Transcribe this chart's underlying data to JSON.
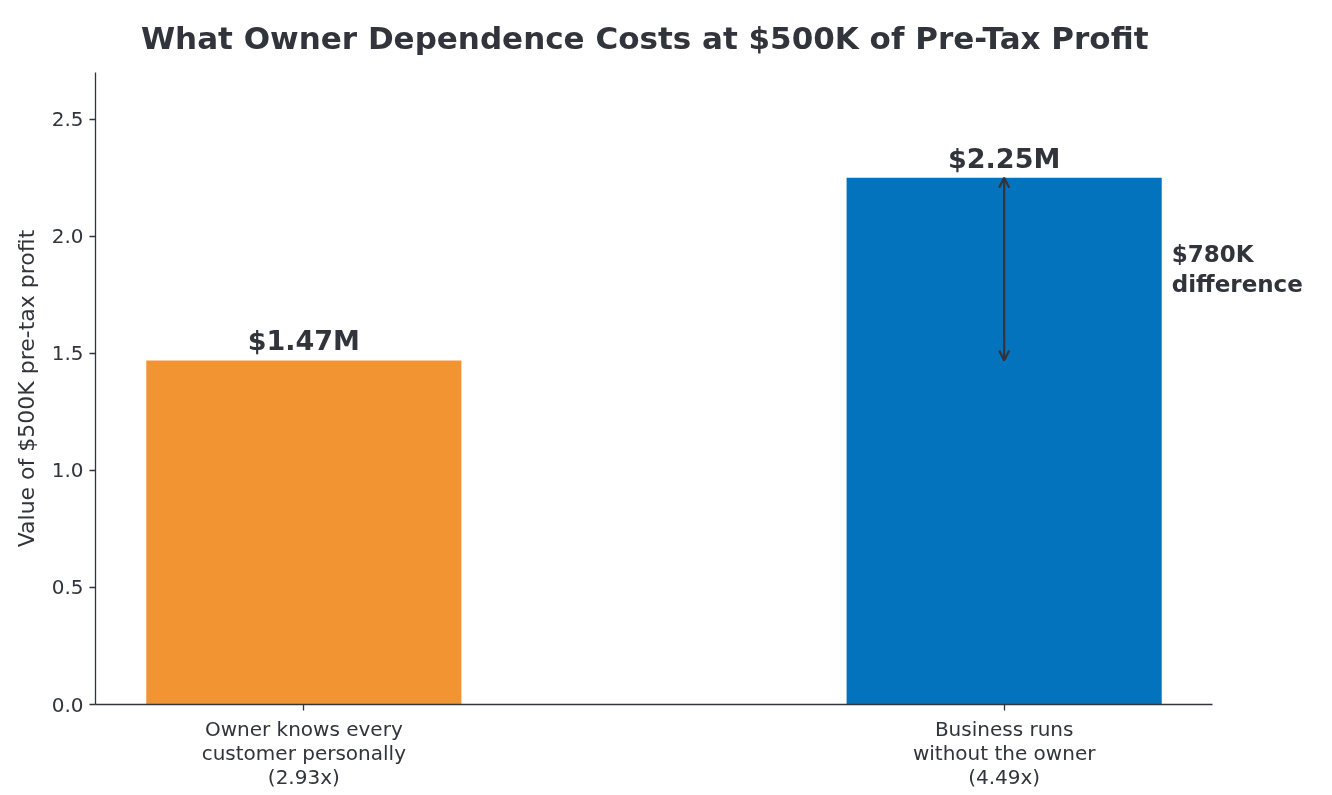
{
  "chart_data": {
    "type": "bar",
    "title": "What Owner Dependence Costs at $500K of Pre-Tax Profit",
    "ylabel": "Value of $500K pre-tax profit",
    "categories": [
      "Owner knows every\ncustomer personally\n(2.93x)",
      "Business runs\nwithout the owner\n(4.49x)"
    ],
    "values": [
      1.47,
      2.25
    ],
    "colors": [
      "#f39433",
      "#0473bd"
    ],
    "value_labels": [
      "$1.47M",
      "$2.25M"
    ],
    "ylim": [
      0,
      2.7
    ],
    "yticks": [
      {
        "value": 0,
        "label": "0.0"
      },
      {
        "value": 0.5,
        "label": "0.5"
      },
      {
        "value": 1,
        "label": "1.0"
      },
      {
        "value": 1.5,
        "label": "1.5"
      },
      {
        "value": 2,
        "label": "2.0"
      },
      {
        "value": 2.5,
        "label": "2.5"
      }
    ],
    "annotations": [
      "$780K\ndifference"
    ]
  }
}
